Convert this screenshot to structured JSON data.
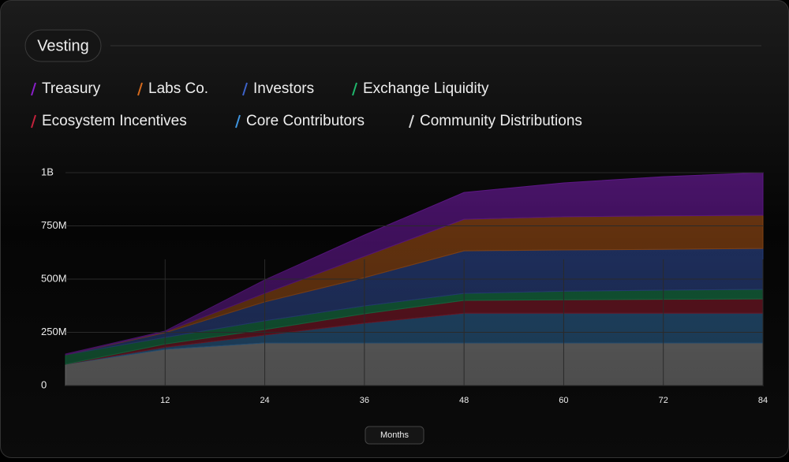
{
  "chart_data": {
    "type": "stacked-area",
    "title": "Vesting",
    "x_label": "Months",
    "x": [
      0,
      12,
      24,
      36,
      48,
      60,
      72,
      84
    ],
    "xlim": [
      0,
      84
    ],
    "xticks": [
      12,
      24,
      36,
      48,
      60,
      72,
      84
    ],
    "ylim": [
      0,
      1000
    ],
    "yticks": [
      {
        "value": 0,
        "label": "0"
      },
      {
        "value": 250,
        "label": "250M"
      },
      {
        "value": 500,
        "label": "500M"
      },
      {
        "value": 750,
        "label": "750M"
      },
      {
        "value": 1000,
        "label": "1B"
      }
    ],
    "grid": true,
    "series": [
      {
        "name": "Treasury",
        "color": "#8a1fc9",
        "values": [
          4,
          4,
          63,
          100,
          126,
          159,
          184,
          200
        ]
      },
      {
        "name": "Labs Co.",
        "color": "#d66a1c",
        "values": [
          0,
          4,
          40,
          100,
          148,
          156,
          157,
          156
        ]
      },
      {
        "name": "Investors",
        "color": "#3d63c9",
        "values": [
          0,
          22,
          89,
          133,
          200,
          194,
          192,
          192
        ]
      },
      {
        "name": "Exchange Liquidity",
        "color": "#1fb86c",
        "values": [
          44,
          31,
          41,
          37,
          33,
          40,
          43,
          45
        ]
      },
      {
        "name": "Ecosystem Incentives",
        "color": "#c4223c",
        "values": [
          0,
          15,
          26,
          44,
          60,
          63,
          65,
          67
        ]
      },
      {
        "name": "Core Contributors",
        "color": "#3f95e0",
        "values": [
          0,
          10,
          37,
          93,
          140,
          140,
          140,
          140
        ]
      },
      {
        "name": "Community Distributions",
        "color": "#d9d9d9",
        "values": [
          100,
          170,
          200,
          200,
          200,
          200,
          200,
          200
        ]
      }
    ]
  }
}
